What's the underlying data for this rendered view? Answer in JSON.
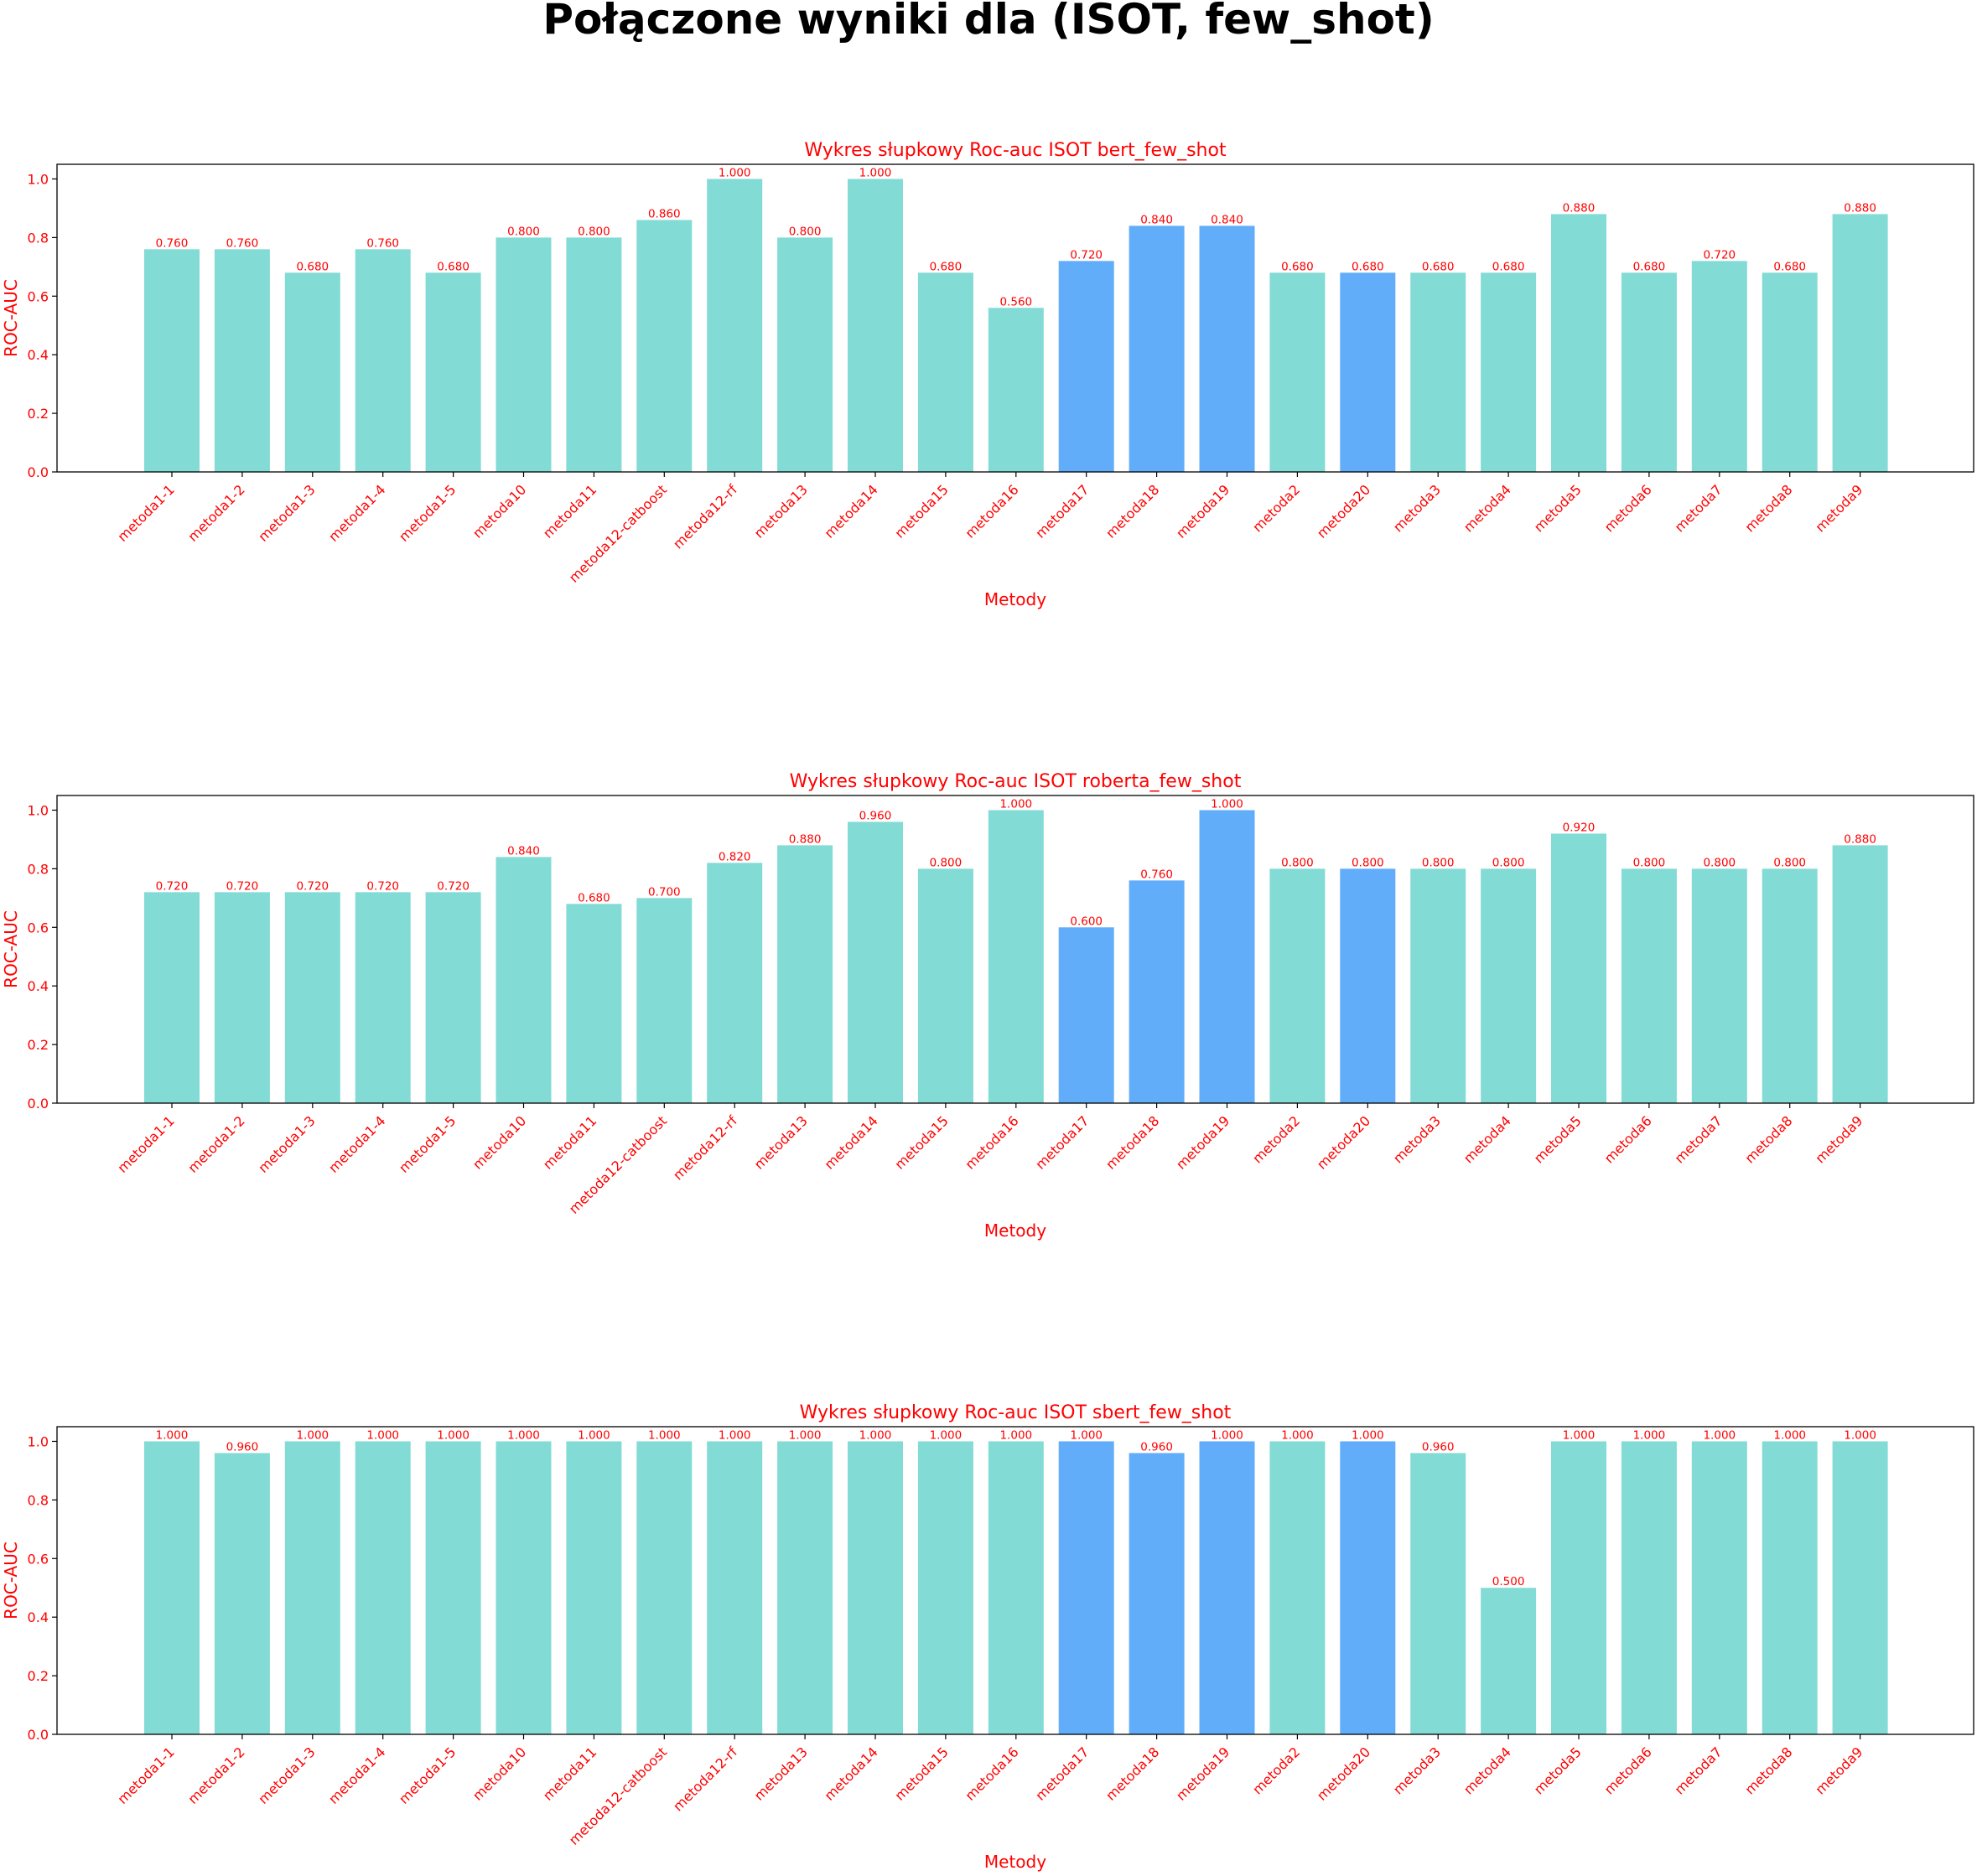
{
  "figure": {
    "title": "Połączone wyniki dla (ISOT, few_shot)"
  },
  "colors": {
    "text": "#ff0000",
    "bar_default": "#83dbd5",
    "bar_highlight": "#61adf9",
    "axis": "#000000"
  },
  "chart_data": [
    {
      "type": "bar",
      "title": "Wykres słupkowy Roc-auc ISOT bert_few_shot",
      "xlabel": "Metody",
      "ylabel": "ROC-AUC",
      "ylim": [
        0,
        1.05
      ],
      "yticks": [
        "0.0",
        "0.2",
        "0.4",
        "0.6",
        "0.8",
        "1.0"
      ],
      "grid": false,
      "categories": [
        "metoda1-1",
        "metoda1-2",
        "metoda1-3",
        "metoda1-4",
        "metoda1-5",
        "metoda10",
        "metoda11",
        "metoda12-catboost",
        "metoda12-rf",
        "metoda13",
        "metoda14",
        "metoda15",
        "metoda16",
        "metoda17",
        "metoda18",
        "metoda19",
        "metoda2",
        "metoda20",
        "metoda3",
        "metoda4",
        "metoda5",
        "metoda6",
        "metoda7",
        "metoda8",
        "metoda9"
      ],
      "values": [
        0.76,
        0.76,
        0.68,
        0.76,
        0.68,
        0.8,
        0.8,
        0.86,
        1.0,
        0.8,
        1.0,
        0.68,
        0.56,
        0.72,
        0.84,
        0.84,
        0.68,
        0.68,
        0.68,
        0.68,
        0.88,
        0.68,
        0.72,
        0.68,
        0.88
      ],
      "value_labels": [
        "0.760",
        "0.760",
        "0.680",
        "0.760",
        "0.680",
        "0.800",
        "0.800",
        "0.860",
        "1.000",
        "0.800",
        "1.000",
        "0.680",
        "0.560",
        "0.720",
        "0.840",
        "0.840",
        "0.680",
        "0.680",
        "0.680",
        "0.680",
        "0.880",
        "0.680",
        "0.720",
        "0.680",
        "0.880"
      ],
      "highlighted": [
        "metoda17",
        "metoda18",
        "metoda19",
        "metoda20"
      ]
    },
    {
      "type": "bar",
      "title": "Wykres słupkowy Roc-auc ISOT roberta_few_shot",
      "xlabel": "Metody",
      "ylabel": "ROC-AUC",
      "ylim": [
        0,
        1.05
      ],
      "yticks": [
        "0.0",
        "0.2",
        "0.4",
        "0.6",
        "0.8",
        "1.0"
      ],
      "grid": false,
      "categories": [
        "metoda1-1",
        "metoda1-2",
        "metoda1-3",
        "metoda1-4",
        "metoda1-5",
        "metoda10",
        "metoda11",
        "metoda12-catboost",
        "metoda12-rf",
        "metoda13",
        "metoda14",
        "metoda15",
        "metoda16",
        "metoda17",
        "metoda18",
        "metoda19",
        "metoda2",
        "metoda20",
        "metoda3",
        "metoda4",
        "metoda5",
        "metoda6",
        "metoda7",
        "metoda8",
        "metoda9"
      ],
      "values": [
        0.72,
        0.72,
        0.72,
        0.72,
        0.72,
        0.84,
        0.68,
        0.7,
        0.82,
        0.88,
        0.96,
        0.8,
        1.0,
        0.6,
        0.76,
        1.0,
        0.8,
        0.8,
        0.8,
        0.8,
        0.92,
        0.8,
        0.8,
        0.8,
        0.88
      ],
      "value_labels": [
        "0.720",
        "0.720",
        "0.720",
        "0.720",
        "0.720",
        "0.840",
        "0.680",
        "0.700",
        "0.820",
        "0.880",
        "0.960",
        "0.800",
        "1.000",
        "0.600",
        "0.760",
        "1.000",
        "0.800",
        "0.800",
        "0.800",
        "0.800",
        "0.920",
        "0.800",
        "0.800",
        "0.800",
        "0.880"
      ],
      "highlighted": [
        "metoda17",
        "metoda18",
        "metoda19",
        "metoda20"
      ]
    },
    {
      "type": "bar",
      "title": "Wykres słupkowy Roc-auc ISOT sbert_few_shot",
      "xlabel": "Metody",
      "ylabel": "ROC-AUC",
      "ylim": [
        0,
        1.05
      ],
      "yticks": [
        "0.0",
        "0.2",
        "0.4",
        "0.6",
        "0.8",
        "1.0"
      ],
      "grid": false,
      "categories": [
        "metoda1-1",
        "metoda1-2",
        "metoda1-3",
        "metoda1-4",
        "metoda1-5",
        "metoda10",
        "metoda11",
        "metoda12-catboost",
        "metoda12-rf",
        "metoda13",
        "metoda14",
        "metoda15",
        "metoda16",
        "metoda17",
        "metoda18",
        "metoda19",
        "metoda2",
        "metoda20",
        "metoda3",
        "metoda4",
        "metoda5",
        "metoda6",
        "metoda7",
        "metoda8",
        "metoda9"
      ],
      "values": [
        1.0,
        0.96,
        1.0,
        1.0,
        1.0,
        1.0,
        1.0,
        1.0,
        1.0,
        1.0,
        1.0,
        1.0,
        1.0,
        1.0,
        0.96,
        1.0,
        1.0,
        1.0,
        0.96,
        0.5,
        1.0,
        1.0,
        1.0,
        1.0,
        1.0
      ],
      "value_labels": [
        "1.000",
        "0.960",
        "1.000",
        "1.000",
        "1.000",
        "1.000",
        "1.000",
        "1.000",
        "1.000",
        "1.000",
        "1.000",
        "1.000",
        "1.000",
        "1.000",
        "0.960",
        "1.000",
        "1.000",
        "1.000",
        "0.960",
        "0.500",
        "1.000",
        "1.000",
        "1.000",
        "1.000",
        "1.000"
      ],
      "highlighted": [
        "metoda17",
        "metoda18",
        "metoda19",
        "metoda20"
      ]
    }
  ]
}
